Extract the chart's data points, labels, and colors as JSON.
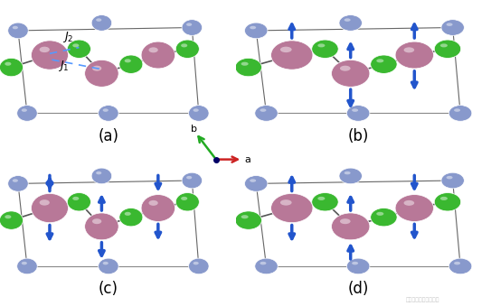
{
  "background_color": "#ffffff",
  "panel_labels": [
    "(a)",
    "(b)",
    "(c)",
    "(d)"
  ],
  "Mo_color": "#b87898",
  "Cl_color": "#3ab830",
  "N_color": "#8899cc",
  "bond_color": "#555555",
  "arrow_color": "#2255cc",
  "J_line_color": "#5599ff",
  "axis_color_a": "#cc2222",
  "axis_color_b": "#22aa22",
  "axis_dot_color": "#000066",
  "watermark": "材料科学与凝聚态物理"
}
